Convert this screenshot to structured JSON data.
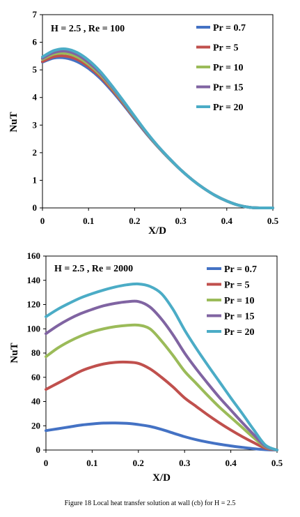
{
  "caption": "Figure 18 Local heat transfer solution at wall (cb) for H = 2.5",
  "chart_data": [
    {
      "type": "line",
      "title": "",
      "annotation": "H = 2.5 , Re = 100",
      "xlabel": "X/D",
      "ylabel": "NuT",
      "xlim": [
        0,
        0.5
      ],
      "ylim": [
        0,
        7
      ],
      "xticks": [
        "0",
        "0.1",
        "0.2",
        "0.3",
        "0.4",
        "0.5"
      ],
      "yticks": [
        "0",
        "1",
        "2",
        "3",
        "4",
        "5",
        "6",
        "7"
      ],
      "grid": false,
      "legend_position": "top-right",
      "x": [
        0,
        0.025,
        0.05,
        0.075,
        0.1,
        0.125,
        0.15,
        0.175,
        0.2,
        0.225,
        0.25,
        0.275,
        0.3,
        0.325,
        0.35,
        0.375,
        0.4,
        0.425,
        0.45,
        0.475,
        0.5
      ],
      "series": [
        {
          "name": "Pr = 0.7",
          "color": "#4472C4",
          "values": [
            5.28,
            5.43,
            5.43,
            5.3,
            5.05,
            4.7,
            4.25,
            3.75,
            3.22,
            2.7,
            2.22,
            1.78,
            1.38,
            1.02,
            0.71,
            0.45,
            0.25,
            0.1,
            0.02,
            0.0,
            0.0
          ]
        },
        {
          "name": "Pr = 5",
          "color": "#C0504D",
          "values": [
            5.3,
            5.48,
            5.5,
            5.38,
            5.12,
            4.76,
            4.3,
            3.79,
            3.25,
            2.72,
            2.23,
            1.79,
            1.38,
            1.02,
            0.71,
            0.45,
            0.25,
            0.1,
            0.02,
            0.0,
            0.0
          ]
        },
        {
          "name": "Pr = 10",
          "color": "#9BBB59",
          "values": [
            5.38,
            5.57,
            5.6,
            5.47,
            5.2,
            4.83,
            4.36,
            3.83,
            3.28,
            2.74,
            2.24,
            1.79,
            1.38,
            1.02,
            0.71,
            0.45,
            0.25,
            0.1,
            0.02,
            0.0,
            0.0
          ]
        },
        {
          "name": "Pr = 15",
          "color": "#8064A2",
          "values": [
            5.42,
            5.63,
            5.68,
            5.55,
            5.27,
            4.89,
            4.4,
            3.86,
            3.3,
            2.75,
            2.25,
            1.8,
            1.38,
            1.02,
            0.71,
            0.45,
            0.25,
            0.1,
            0.02,
            0.0,
            0.0
          ]
        },
        {
          "name": "Pr = 20",
          "color": "#4BACC6",
          "values": [
            5.47,
            5.7,
            5.76,
            5.63,
            5.35,
            4.95,
            4.44,
            3.89,
            3.32,
            2.76,
            2.25,
            1.8,
            1.38,
            1.02,
            0.71,
            0.45,
            0.25,
            0.1,
            0.02,
            0.0,
            0.0
          ]
        }
      ]
    },
    {
      "type": "line",
      "title": "",
      "annotation": "H = 2.5 , Re = 2000",
      "xlabel": "X/D",
      "ylabel": "NuT",
      "xlim": [
        0,
        0.5
      ],
      "ylim": [
        0,
        160
      ],
      "xticks": [
        "0",
        "0.1",
        "0.2",
        "0.3",
        "0.4",
        "0.5"
      ],
      "yticks": [
        "0",
        "20",
        "40",
        "60",
        "80",
        "100",
        "120",
        "140",
        "160"
      ],
      "grid": false,
      "legend_position": "top-right",
      "x": [
        0,
        0.025,
        0.05,
        0.075,
        0.1,
        0.125,
        0.15,
        0.175,
        0.2,
        0.225,
        0.25,
        0.275,
        0.3,
        0.325,
        0.35,
        0.375,
        0.4,
        0.425,
        0.45,
        0.475,
        0.5
      ],
      "series": [
        {
          "name": "Pr = 0.7",
          "color": "#4472C4",
          "values": [
            16,
            17.5,
            19,
            20.5,
            21.5,
            22.2,
            22.3,
            22,
            21,
            19.5,
            17,
            14,
            11,
            8.5,
            6.5,
            4.8,
            3.4,
            2.2,
            1.1,
            0.3,
            0
          ]
        },
        {
          "name": "Pr = 5",
          "color": "#C0504D",
          "values": [
            50,
            55,
            60,
            65,
            68.5,
            71,
            72.3,
            72.5,
            71.5,
            67,
            60,
            52,
            43,
            36,
            29,
            22.5,
            16.5,
            11,
            6,
            1.5,
            0
          ]
        },
        {
          "name": "Pr = 10",
          "color": "#9BBB59",
          "values": [
            77,
            84,
            89.5,
            94,
            97.5,
            100,
            101.8,
            102.8,
            103,
            100,
            90,
            78,
            65,
            55,
            45,
            35.5,
            27,
            18.5,
            10,
            2.5,
            0
          ]
        },
        {
          "name": "Pr = 15",
          "color": "#8064A2",
          "values": [
            96,
            102.5,
            108,
            112.5,
            116,
            119,
            121,
            122.3,
            122.5,
            118,
            108,
            95,
            80,
            67,
            55,
            43.5,
            33,
            22.5,
            12.5,
            3,
            0
          ]
        },
        {
          "name": "Pr = 20",
          "color": "#4BACC6",
          "values": [
            110,
            116,
            121,
            125.5,
            129,
            132,
            134.5,
            136.3,
            137,
            135,
            129,
            116,
            99,
            84,
            70,
            56.5,
            43,
            30,
            16.5,
            4,
            0
          ]
        }
      ]
    }
  ]
}
